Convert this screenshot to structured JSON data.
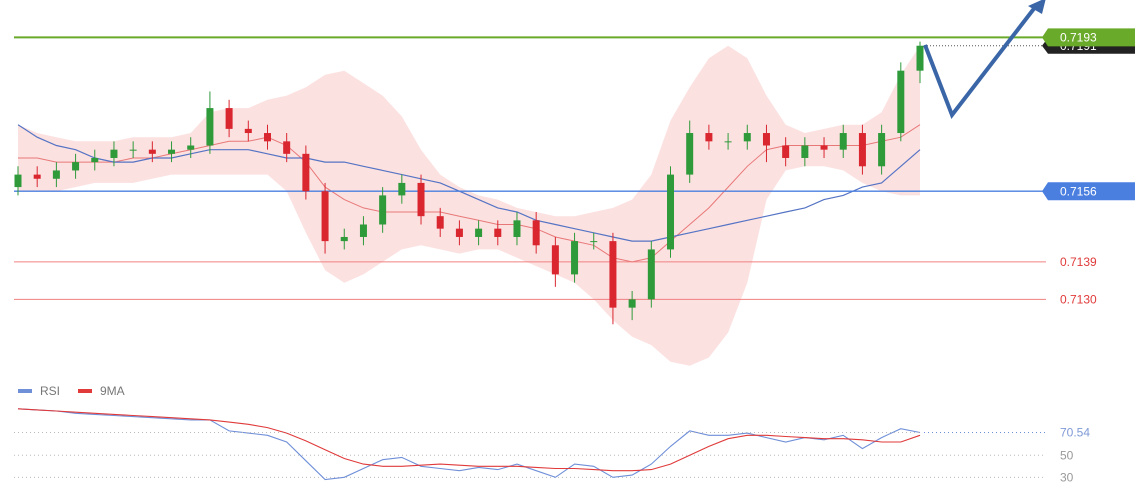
{
  "chart_data": [
    {
      "type": "candlestick",
      "ylim": [
        0.7113,
        0.7202
      ],
      "up_color": "#2e9a3a",
      "down_color": "#d9262f",
      "band_color": "#f9c9c9",
      "bb_middle_color": "#e87878",
      "ma_color": "#5574c4",
      "open": [
        0.7157,
        0.716,
        0.7159,
        0.7161,
        0.7163,
        0.7164,
        0.7166,
        0.7166,
        0.7165,
        0.7166,
        0.7167,
        0.7176,
        0.7171,
        0.717,
        0.7168,
        0.7165,
        0.7156,
        0.7144,
        0.7145,
        0.7148,
        0.7155,
        0.7158,
        0.715,
        0.7147,
        0.7145,
        0.7147,
        0.7145,
        0.7149,
        0.7143,
        0.7136,
        0.7144,
        0.7144,
        0.7128,
        0.713,
        0.7142,
        0.716,
        0.717,
        0.7168,
        0.7168,
        0.717,
        0.7167,
        0.7164,
        0.7167,
        0.7166,
        0.717,
        0.7162,
        0.717,
        0.7185
      ],
      "high": [
        0.7162,
        0.7162,
        0.7163,
        0.7165,
        0.7166,
        0.7168,
        0.7168,
        0.7168,
        0.7168,
        0.7169,
        0.718,
        0.7178,
        0.7173,
        0.7172,
        0.717,
        0.7167,
        0.7158,
        0.7147,
        0.715,
        0.7157,
        0.716,
        0.716,
        0.7152,
        0.7149,
        0.7149,
        0.7149,
        0.7151,
        0.7151,
        0.7145,
        0.7146,
        0.7146,
        0.7146,
        0.7132,
        0.7144,
        0.7162,
        0.7173,
        0.7172,
        0.717,
        0.7172,
        0.7172,
        0.7169,
        0.7169,
        0.7169,
        0.7172,
        0.7172,
        0.7172,
        0.7187,
        0.7192
      ],
      "low": [
        0.7155,
        0.7157,
        0.7157,
        0.7159,
        0.7161,
        0.7162,
        0.7164,
        0.7163,
        0.7163,
        0.7164,
        0.7165,
        0.7169,
        0.7168,
        0.7166,
        0.7163,
        0.7154,
        0.7141,
        0.7142,
        0.7143,
        0.7146,
        0.7153,
        0.7148,
        0.7145,
        0.7143,
        0.7143,
        0.7143,
        0.7143,
        0.7141,
        0.7133,
        0.7134,
        0.7142,
        0.7124,
        0.7125,
        0.7128,
        0.714,
        0.7158,
        0.7166,
        0.7166,
        0.7166,
        0.7163,
        0.7162,
        0.7162,
        0.7164,
        0.7164,
        0.716,
        0.716,
        0.7168,
        0.7182
      ],
      "close": [
        0.716,
        0.7159,
        0.7161,
        0.7163,
        0.7164,
        0.7166,
        0.7166,
        0.7165,
        0.7166,
        0.7167,
        0.7176,
        0.7171,
        0.717,
        0.7168,
        0.7165,
        0.7156,
        0.7144,
        0.7145,
        0.7148,
        0.7155,
        0.7158,
        0.715,
        0.7147,
        0.7145,
        0.7147,
        0.7145,
        0.7149,
        0.7143,
        0.7136,
        0.7144,
        0.7144,
        0.7128,
        0.713,
        0.7142,
        0.716,
        0.717,
        0.7168,
        0.7168,
        0.717,
        0.7167,
        0.7164,
        0.7167,
        0.7166,
        0.717,
        0.7162,
        0.717,
        0.7185,
        0.7191
      ],
      "bb_upper": [
        0.7172,
        0.717,
        0.7169,
        0.7168,
        0.7168,
        0.7168,
        0.7169,
        0.7169,
        0.7169,
        0.717,
        0.7175,
        0.7176,
        0.7176,
        0.7178,
        0.7179,
        0.7181,
        0.7184,
        0.7185,
        0.7182,
        0.7179,
        0.7174,
        0.7166,
        0.716,
        0.7157,
        0.7155,
        0.7154,
        0.7152,
        0.7151,
        0.715,
        0.715,
        0.7151,
        0.7152,
        0.7154,
        0.716,
        0.7173,
        0.7181,
        0.7188,
        0.7191,
        0.7188,
        0.7179,
        0.7172,
        0.717,
        0.7171,
        0.7172,
        0.7172,
        0.7175,
        0.7184,
        0.7191
      ],
      "bb_middle": [
        0.7164,
        0.7164,
        0.7163,
        0.7163,
        0.7163,
        0.7163,
        0.7164,
        0.7164,
        0.7165,
        0.7166,
        0.7167,
        0.7168,
        0.7168,
        0.7169,
        0.7167,
        0.7163,
        0.7157,
        0.7154,
        0.7152,
        0.7151,
        0.7151,
        0.7151,
        0.7151,
        0.715,
        0.7149,
        0.7148,
        0.7148,
        0.7147,
        0.7145,
        0.7144,
        0.7143,
        0.714,
        0.7139,
        0.714,
        0.7144,
        0.7148,
        0.7152,
        0.7157,
        0.7162,
        0.7166,
        0.7167,
        0.7167,
        0.7167,
        0.7167,
        0.7167,
        0.7168,
        0.7169,
        0.7172
      ],
      "bb_lower": [
        0.7156,
        0.7156,
        0.7156,
        0.7157,
        0.7158,
        0.7158,
        0.7158,
        0.7159,
        0.716,
        0.716,
        0.716,
        0.716,
        0.716,
        0.716,
        0.7156,
        0.7146,
        0.7137,
        0.7134,
        0.7136,
        0.7139,
        0.7142,
        0.7143,
        0.7142,
        0.7141,
        0.7142,
        0.7142,
        0.714,
        0.7138,
        0.7136,
        0.7134,
        0.713,
        0.7125,
        0.7121,
        0.7119,
        0.7115,
        0.7114,
        0.7116,
        0.7122,
        0.7134,
        0.7154,
        0.7161,
        0.7162,
        0.7162,
        0.7161,
        0.7158,
        0.7156,
        0.7155,
        0.7155
      ],
      "ma": [
        0.7172,
        0.7169,
        0.7167,
        0.7166,
        0.7164,
        0.7163,
        0.7163,
        0.7164,
        0.7164,
        0.7165,
        0.7166,
        0.7166,
        0.7166,
        0.7165,
        0.7164,
        0.7164,
        0.7163,
        0.7163,
        0.7162,
        0.7161,
        0.716,
        0.7159,
        0.7158,
        0.7156,
        0.7154,
        0.7152,
        0.7151,
        0.7149,
        0.7148,
        0.7147,
        0.7146,
        0.7145,
        0.7144,
        0.7144,
        0.7145,
        0.7146,
        0.7147,
        0.7148,
        0.7149,
        0.715,
        0.7151,
        0.7152,
        0.7154,
        0.7155,
        0.7157,
        0.7158,
        0.7162,
        0.7166
      ],
      "levels": [
        0.7193,
        0.7156,
        0.7139,
        {
          "value": 0.713,
          "label": "0.7130"
        }
      ],
      "level_colors": [
        "#6aaa2a",
        "#4a7fe0",
        "#f08080",
        "#f08080"
      ],
      "level_boxed": [
        true,
        true,
        false,
        false
      ]
    },
    {
      "type": "line",
      "ylim": [
        14,
        100
      ],
      "yticks": [
        50,
        30
      ],
      "series": [
        {
          "name": "RSI",
          "color": "#6f8fd8",
          "values": [
            92,
            91,
            90,
            88,
            87,
            86,
            85,
            84,
            83,
            82,
            82,
            72,
            70,
            68,
            62,
            45,
            28,
            30,
            38,
            46,
            48,
            40,
            38,
            36,
            39,
            37,
            42,
            36,
            30,
            42,
            40,
            30,
            32,
            42,
            58,
            72,
            68,
            68,
            70,
            66,
            62,
            66,
            64,
            68,
            56,
            66,
            74,
            70.54
          ]
        },
        {
          "name": "9MA",
          "color": "#e03a3a",
          "values": [
            92,
            91,
            90,
            89,
            88,
            87,
            86,
            85,
            84,
            83,
            82,
            80,
            78,
            75,
            70,
            63,
            55,
            47,
            42,
            40,
            40,
            41,
            42,
            41,
            40,
            40,
            40,
            39,
            38,
            38,
            37,
            36,
            36,
            37,
            42,
            50,
            58,
            65,
            68,
            68,
            67,
            66,
            65,
            65,
            64,
            62,
            62,
            68
          ]
        }
      ]
    }
  ]
}
